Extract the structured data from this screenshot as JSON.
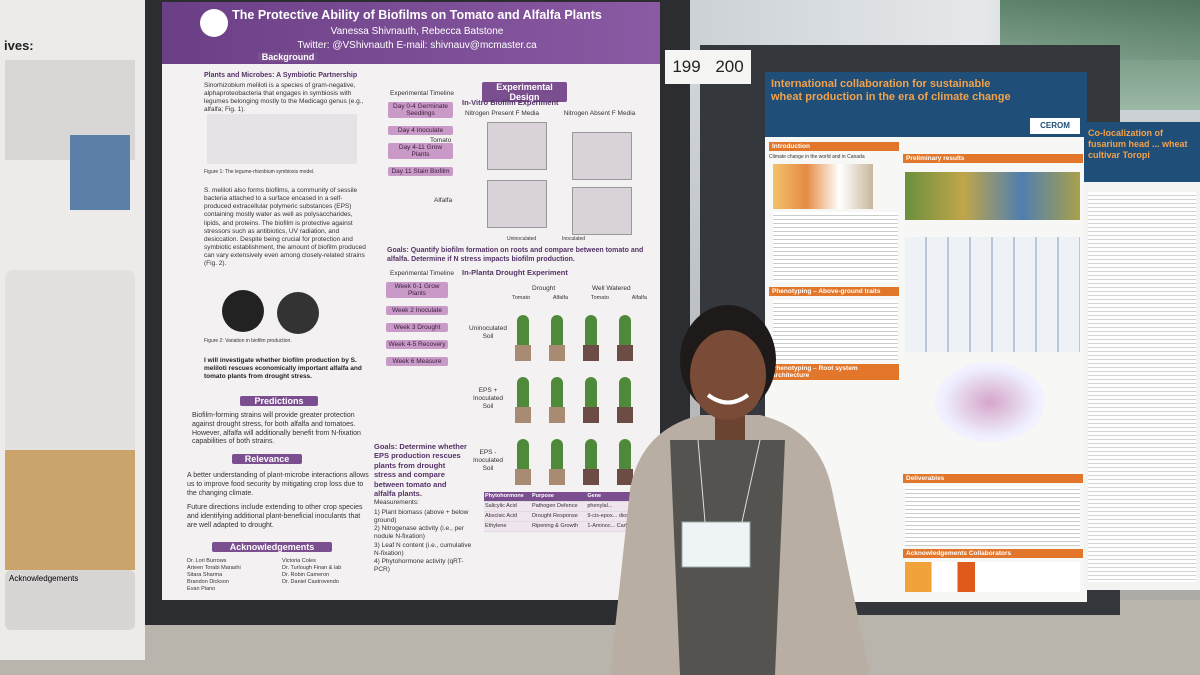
{
  "board_numbers": [
    "199",
    "200"
  ],
  "left_poster": {
    "fragments": [
      "ives:",
      "Acknowledgements"
    ]
  },
  "main_poster": {
    "title": "The Protective Ability of Biofilms on Tomato and Alfalfa Plants",
    "authors": "Vanessa Shivnauth, Rebecca Batstone",
    "contact": "Twitter: @VShivnauth E-mail: shivnauv@mcmaster.ca",
    "background": {
      "heading": "Background",
      "subheading": "Plants and Microbes: A Symbiotic Partnership",
      "intro": "Sinorhizobium meliloti is a species of gram-negative, alphaproteobacteria that engages in symbiosis with legumes belonging mostly to the Medicago genus (e.g., alfalfa; Fig. 1).",
      "figure1": "Figure 1: The legume-rhizobium symbiosis model.",
      "body": "S. meliloti also forms biofilms, a community of sessile bacteria attached to a surface encased in a self-produced extracellular polymeric substances (EPS) containing mostly water as well as polysaccharides, lipids, and proteins. The biofilm is protective against stressors such as antibiotics, UV radiation, and desiccation. Despite being crucial for protection and symbiotic establishment, the amount of biofilm produced can vary extensively even among closely-related strains (Fig. 2).",
      "figure2": "Figure 2: Variation in biofilm production.",
      "aim": "I will investigate whether biofilm production by S. meliloti rescues economically important alfalfa and tomato plants from drought stress."
    },
    "predictions": {
      "heading": "Predictions",
      "text": "Biofilm-forming strains will provide greater protection against drought stress, for both alfalfa and tomatoes. However, alfalfa will additionally benefit from N-fixation capabilities of both strains."
    },
    "relevance": {
      "heading": "Relevance",
      "text": "A better understanding of plant-microbe interactions allows us to improve food security by mitigating crop loss due to the changing climate.",
      "future": "Future directions include extending to other crop species and identifying additional plant-beneficial inoculants that are well adapted to drought."
    },
    "acknowledgements": {
      "heading": "Acknowledgements",
      "names": [
        "Dr. Lori Burrows",
        "Victoria Coles",
        "Arteen Torabi Marashi",
        "Dr. Turlough Finan & lab",
        "Sitara Sharma",
        "Dr. Robin Cameron",
        "Brandon Dickson",
        "Dr. Daniel Castrovendo",
        "Evan Piano"
      ]
    },
    "design": {
      "heading": "Experimental Design",
      "in_vitro_title": "In-Vitro Biofilm Experiment",
      "timeline_title": "Experimental Timeline",
      "in_vitro_steps": [
        "Day 0-4 Germinate Seedlings",
        "Day 4 Inoculate",
        "Day 4-11 Grow Plants",
        "Day 11 Stain Biofilm"
      ],
      "media": [
        "Nitrogen Present F Media",
        "Nitrogen Absent F Media"
      ],
      "plants": [
        "Tomato",
        "Alfalfa"
      ],
      "plate_legend": [
        "Uninoculated",
        "Inoculated"
      ],
      "goal1": "Goals: Quantify biofilm formation on roots and compare between tomato and alfalfa. Determine if N stress impacts biofilm production.",
      "in_planta_title": "In-Planta Drought Experiment",
      "in_planta_steps": [
        "Week 0-1 Grow Plants",
        "Week 2 Inoculate",
        "Week 3 Drought",
        "Week 4-5 Recovery",
        "Week 6 Measure"
      ],
      "conditions": [
        "Drought",
        "Well Watered"
      ],
      "plant_cols": [
        "Tomato",
        "Alfalfa",
        "Tomato",
        "Alfalfa"
      ],
      "soil_rows": [
        "Uninoculated Soil",
        "EPS + Inoculated Soil",
        "EPS - Inoculated Soil"
      ],
      "goal2": "Goals: Determine whether EPS production rescues plants from drought stress and compare between tomato and alfalfa plants.",
      "measurements_title": "Measurements:",
      "measurements": [
        "1) Plant biomass (above + below ground)",
        "2) Nitrogenase activity (i.e., per nodule N-fixation)",
        "3) Leaf N content (i.e., cumulative N-fixation)",
        "4) Phytohormone activity (qRT-PCR)"
      ],
      "table": {
        "header": [
          "Phytohormone",
          "Purpose",
          "Gene"
        ],
        "rows": [
          [
            "Salicylic Acid",
            "Pathogen Defence",
            "phenylal..."
          ],
          [
            "Abscisic Acid",
            "Drought Response",
            "9-cis-epox... dioxygena..."
          ],
          [
            "Ethylene",
            "Ripening & Growth",
            "1-Aminoc... Carboxyl..."
          ]
        ]
      }
    }
  },
  "right_poster": {
    "title": "International collaboration for sustainable wheat production in the era of climate change",
    "logo": "CEROM",
    "sections": [
      "Introduction",
      "Preliminary results",
      "Phenotyping – Above-ground traits",
      "Phenotyping – Root system architecture",
      "Deliverables",
      "Acknowledgements Collaborators"
    ],
    "intro_subheading": "Climate change in the world and in Canada"
  },
  "far_right_poster": {
    "title": "Co-localization of fusarium head ... wheat cultivar Toropi"
  }
}
